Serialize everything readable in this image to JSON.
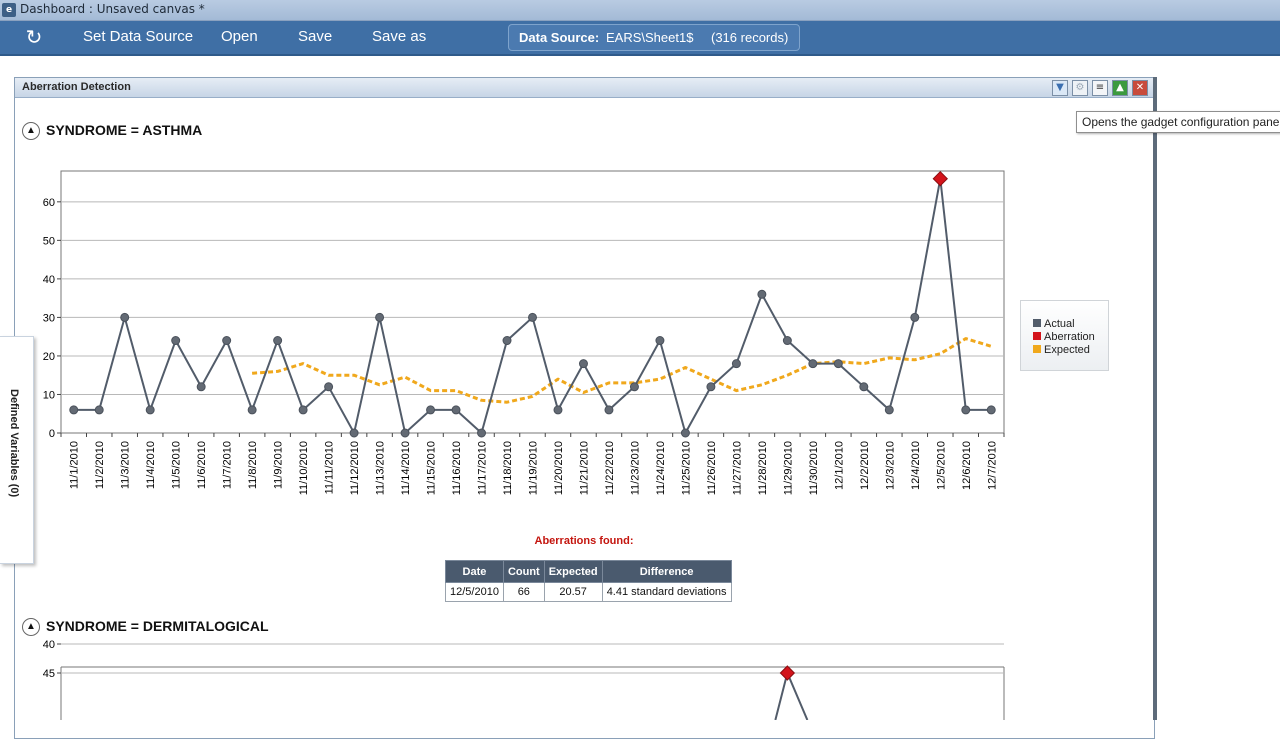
{
  "window": {
    "app_icon": "e",
    "title": "Dashboard : Unsaved canvas *"
  },
  "toolbar": {
    "refresh_icon": "refresh-icon",
    "buttons": [
      "Set Data Source",
      "Open",
      "Save",
      "Save as"
    ],
    "data_source_label": "Data Source:",
    "data_source_value": "EARS\\Sheet1$",
    "records": "(316 records)"
  },
  "side_tab": {
    "label": "Defined Variables (0)"
  },
  "gadget": {
    "title": "Aberration Detection",
    "icons": [
      "filter-icon",
      "gear-icon",
      "list-icon",
      "maximize-icon",
      "close-icon"
    ],
    "tooltip": "Opens the gadget configuration panel"
  },
  "sections": [
    {
      "title": "SYNDROME = ASTHMA"
    },
    {
      "title": "SYNDROME = DERMITALOGICAL"
    }
  ],
  "colors": {
    "actual": "#525c6a",
    "aberration": "#d3141b",
    "expected": "#f0a81c",
    "toolbar": "#3f6fa5"
  },
  "chart_data": [
    {
      "type": "line",
      "x": [
        "11/1/2010",
        "11/2/2010",
        "11/3/2010",
        "11/4/2010",
        "11/5/2010",
        "11/6/2010",
        "11/7/2010",
        "11/8/2010",
        "11/9/2010",
        "11/10/2010",
        "11/11/2010",
        "11/12/2010",
        "11/13/2010",
        "11/14/2010",
        "11/15/2010",
        "11/16/2010",
        "11/17/2010",
        "11/18/2010",
        "11/19/2010",
        "11/20/2010",
        "11/21/2010",
        "11/22/2010",
        "11/23/2010",
        "11/24/2010",
        "11/25/2010",
        "11/26/2010",
        "11/27/2010",
        "11/28/2010",
        "11/29/2010",
        "11/30/2010",
        "12/1/2010",
        "12/2/2010",
        "12/3/2010",
        "12/4/2010",
        "12/5/2010",
        "12/6/2010",
        "12/7/2010"
      ],
      "series": [
        {
          "name": "Actual",
          "values": [
            6,
            6,
            30,
            6,
            24,
            12,
            24,
            6,
            24,
            6,
            12,
            0,
            30,
            0,
            6,
            6,
            0,
            24,
            30,
            6,
            18,
            6,
            12,
            24,
            0,
            12,
            18,
            36,
            24,
            18,
            18,
            12,
            6,
            30,
            66,
            6,
            6
          ]
        },
        {
          "name": "Aberration",
          "points": [
            {
              "x": "12/5/2010",
              "y": 66
            }
          ]
        },
        {
          "name": "Expected",
          "values": [
            null,
            null,
            null,
            null,
            null,
            null,
            null,
            15.5,
            16,
            18,
            15,
            15,
            12.5,
            14.5,
            11,
            11,
            8.5,
            8,
            9.5,
            14,
            10.5,
            13,
            13,
            14,
            17,
            14,
            11,
            12.5,
            15,
            18,
            18.5,
            18,
            19.5,
            19,
            20.57,
            24.5,
            22.5
          ]
        }
      ],
      "yticks": [
        0,
        10,
        20,
        30,
        40,
        50,
        60
      ],
      "ylim": [
        0,
        68
      ],
      "legend": "right"
    },
    {
      "type": "line",
      "yticks": [
        40,
        45
      ],
      "visible_aberration_x": "11/29/2010",
      "visible_aberration_y": 45
    }
  ],
  "aberrations": {
    "heading": "Aberrations found:",
    "columns": [
      "Date",
      "Count",
      "Expected",
      "Difference"
    ],
    "rows": [
      [
        "12/5/2010",
        "66",
        "20.57",
        "4.41 standard deviations"
      ]
    ]
  }
}
